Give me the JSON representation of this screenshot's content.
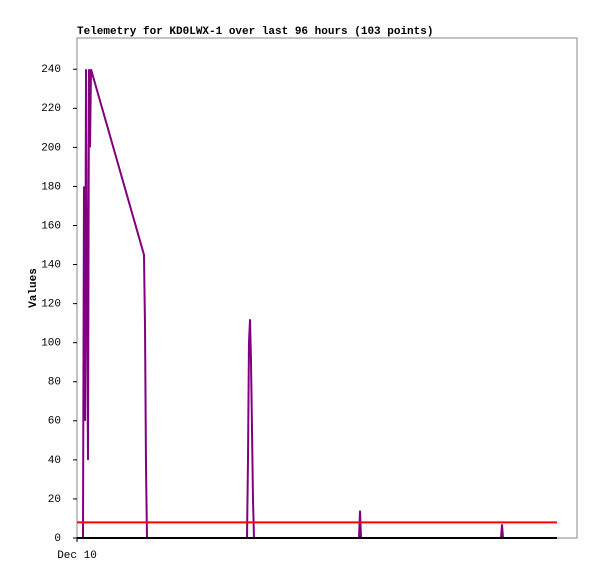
{
  "chart_data": {
    "type": "line",
    "title": "Telemetry for KD0LWX-1 over last 96 hours (103 points)",
    "y_label": "Values",
    "xlim": [
      0,
      96
    ],
    "xticks": [
      {
        "value": 0,
        "label": "Dec 10"
      }
    ],
    "ylim": [
      0,
      256
    ],
    "yticks": [
      0,
      20,
      40,
      60,
      80,
      100,
      120,
      140,
      160,
      180,
      200,
      220,
      240
    ],
    "series": [
      {
        "color": "#800080",
        "x": [
          1.15,
          1.34,
          1.54,
          1.73,
          1.92,
          2.11,
          2.3,
          2.5,
          2.69,
          12.86,
          13.06,
          13.25,
          13.44,
          32.64,
          32.83,
          33.02,
          33.22,
          33.41,
          33.6,
          33.79,
          33.98,
          54.14,
          54.34,
          54.53,
          81.41,
          81.6,
          81.79
        ],
        "values": [
          0,
          180,
          60,
          240,
          120,
          40,
          240,
          200,
          240,
          145,
          108,
          36,
          0,
          0,
          40,
          100,
          112,
          90,
          56,
          20,
          0,
          0,
          14,
          0,
          0,
          7,
          0
        ]
      },
      {
        "color": "#ff0000",
        "x": [
          0,
          92.16
        ],
        "values": [
          8,
          8
        ]
      },
      {
        "color": "#000000",
        "x": [
          0,
          92.16
        ],
        "values": [
          0,
          0
        ]
      }
    ]
  }
}
